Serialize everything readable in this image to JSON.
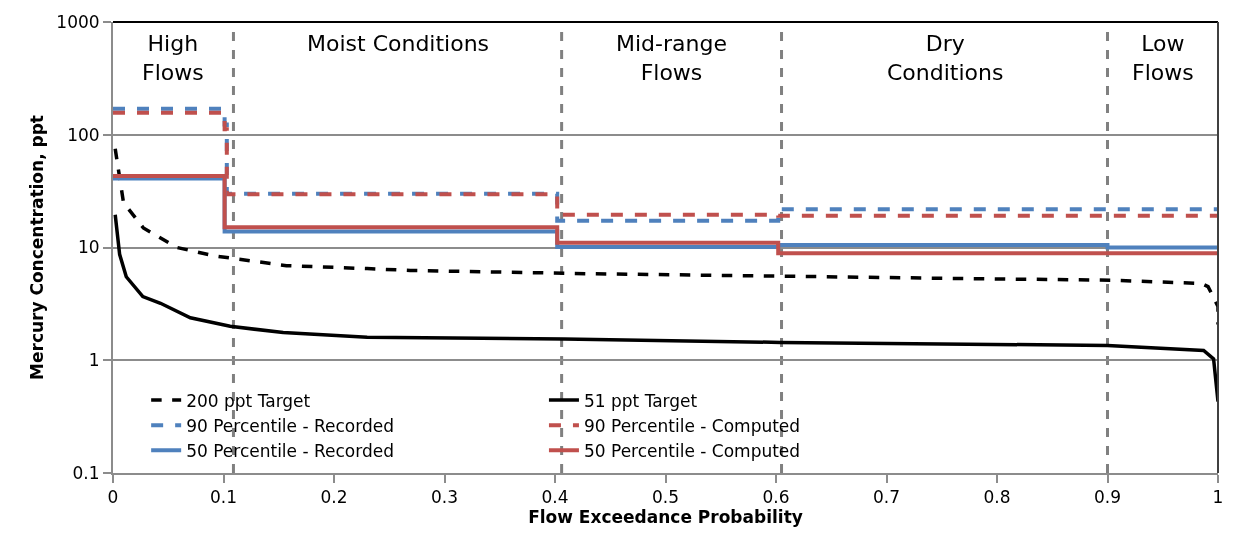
{
  "chart_data": {
    "type": "line",
    "xlabel": "Flow Exceedance Probability",
    "ylabel": "Mercury Concentration, ppt",
    "log": "y",
    "xlim": [
      0,
      1
    ],
    "ylim": [
      0.1,
      1000
    ],
    "xticks": [
      0,
      0.1,
      0.2,
      0.3,
      0.4,
      0.5,
      0.6,
      0.7,
      0.8,
      0.9,
      1
    ],
    "yticks": [
      0.1,
      1,
      10,
      100,
      1000
    ],
    "grid": "y",
    "legend": "bottom left",
    "marker": "none",
    "series": [
      {
        "name": "200 ppt Target",
        "line_style": "dashed",
        "color": "#000000",
        "x": [
          0.002,
          0.0095,
          0.0275,
          0.058,
          0.091,
          0.157,
          0.23,
          0.269,
          0.429,
          0.616,
          0.773,
          0.903,
          0.985,
          0.991,
          1.0,
          1.0
        ],
        "values": [
          75,
          25,
          14.9,
          10,
          8.45,
          6.9,
          6.5,
          6.26,
          5.86,
          5.55,
          5.3,
          5.13,
          4.8,
          4.5,
          3.0,
          2.08
        ]
      },
      {
        "name": "51 ppt Target",
        "line_style": "solid",
        "color": "#000000",
        "x": [
          0.002,
          0.006,
          0.012,
          0.027,
          0.043,
          0.07,
          0.106,
          0.154,
          0.23,
          0.408,
          0.604,
          0.773,
          0.9,
          0.987,
          0.996,
          1.0
        ],
        "values": [
          19.5,
          8.7,
          5.5,
          3.67,
          3.2,
          2.38,
          2.0,
          1.76,
          1.6,
          1.54,
          1.44,
          1.39,
          1.35,
          1.22,
          1.03,
          0.43
        ]
      },
      {
        "name": "90 Percentile - Recorded",
        "type": "step",
        "line_style": "dashed",
        "color": "#4f81bd",
        "x": [
          0,
          0.101,
          0.103,
          0.402,
          0.602,
          1
        ],
        "values": [
          170,
          123,
          30,
          17.3,
          21.8,
          21.8
        ]
      },
      {
        "name": "90 Percentile - Computed",
        "type": "step",
        "line_style": "dashed",
        "color": "#c0504d",
        "x": [
          0,
          0.101,
          0.103,
          0.402,
          0.602,
          1
        ],
        "values": [
          157,
          112,
          29.7,
          19.5,
          19.1,
          19.1
        ]
      },
      {
        "name": "50 Percentile - Recorded",
        "type": "step",
        "line_style": "solid",
        "color": "#4f81bd",
        "x": [
          0,
          0.101,
          0.402,
          0.602,
          0.9,
          1
        ],
        "values": [
          41,
          13.9,
          10.1,
          10.5,
          10.0,
          10.0
        ]
      },
      {
        "name": "50 Percentile - Computed",
        "type": "step",
        "line_style": "solid",
        "color": "#c0504d",
        "x": [
          0,
          0.101,
          0.402,
          0.602,
          1
        ],
        "values": [
          43,
          15.1,
          11.0,
          8.9,
          8.9
        ]
      }
    ],
    "ref_lines": [
      {
        "axis": "x",
        "value": 0.109,
        "color": "#808080",
        "line_style": "dashed"
      },
      {
        "axis": "x",
        "value": 0.406,
        "color": "#808080",
        "line_style": "dashed"
      },
      {
        "axis": "x",
        "value": 0.605,
        "color": "#808080",
        "line_style": "dashed"
      },
      {
        "axis": "x",
        "value": 0.9,
        "color": "#808080",
        "line_style": "dashed"
      }
    ],
    "annotations": [
      "High\nFlows",
      "Moist Conditions",
      "Mid-range\nFlows",
      "Dry\nConditions",
      "Low\nFlows"
    ]
  }
}
